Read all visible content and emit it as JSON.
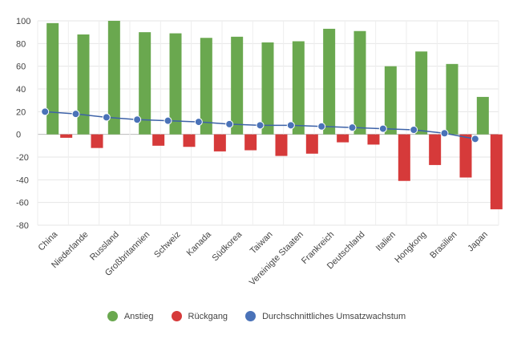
{
  "chart_data": {
    "type": "bar",
    "categories": [
      "China",
      "Niederlande",
      "Russland",
      "Großbritannien",
      "Schweiz",
      "Kanada",
      "Südkorea",
      "Taiwan",
      "Vereinigte Staaten",
      "Frankreich",
      "Deutschland",
      "Italien",
      "Hongkong",
      "Brasilien",
      "Japan"
    ],
    "ylim": [
      -80,
      100
    ],
    "yticks": [
      100,
      80,
      60,
      40,
      20,
      0,
      -20,
      -40,
      -60,
      -80
    ],
    "series": [
      {
        "name": "Anstieg",
        "type": "bar",
        "color": "#6aa84f",
        "values": [
          98,
          88,
          100,
          90,
          89,
          85,
          86,
          81,
          82,
          93,
          91,
          60,
          73,
          62,
          33
        ]
      },
      {
        "name": "Rückgang",
        "type": "bar",
        "color": "#d63a3a",
        "values": [
          -3,
          -12,
          0,
          -10,
          -11,
          -15,
          -14,
          -19,
          -17,
          -7,
          -9,
          -41,
          -27,
          -38,
          -66
        ]
      },
      {
        "name": "Durchschnittliches Umsatzwachstum",
        "type": "line",
        "color": "#4a72b8",
        "values": [
          20,
          18,
          15,
          13,
          12,
          11,
          9,
          8,
          8,
          7,
          6,
          5,
          4,
          1,
          -4
        ]
      }
    ]
  },
  "legend": {
    "items": [
      {
        "label": "Anstieg",
        "color": "#6aa84f"
      },
      {
        "label": "Rückgang",
        "color": "#d63a3a"
      },
      {
        "label": "Durchschnittliches Umsatzwachstum",
        "color": "#4a72b8"
      }
    ]
  }
}
